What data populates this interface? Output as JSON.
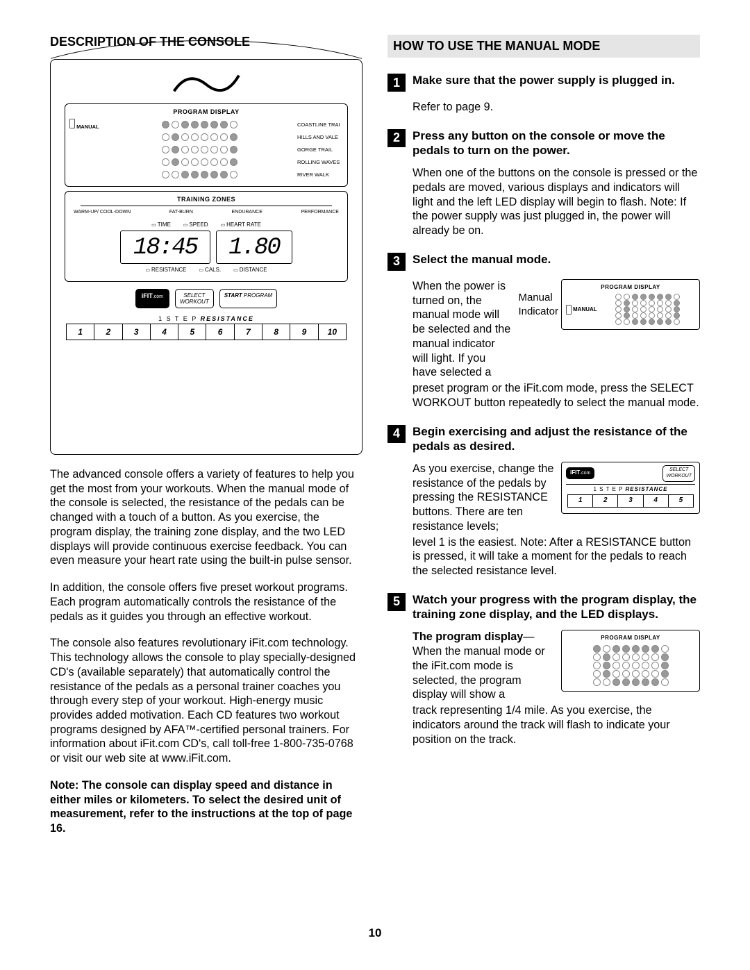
{
  "left": {
    "title": "DESCRIPTION OF THE CONSOLE",
    "console": {
      "program_display_label": "PROGRAM DISPLAY",
      "manual_label": "MANUAL",
      "trail_labels": [
        "COASTLINE TRAI",
        "HILLS AND VALE",
        "GORGE TRAIL",
        "ROLLING WAVES",
        "RIVER WALK"
      ],
      "dot_rows": [
        [
          1,
          0,
          1,
          1,
          1,
          1,
          1,
          0
        ],
        [
          0,
          1,
          0,
          0,
          0,
          0,
          0,
          1
        ],
        [
          0,
          1,
          0,
          0,
          0,
          0,
          0,
          1
        ],
        [
          0,
          1,
          0,
          0,
          0,
          0,
          0,
          1
        ],
        [
          0,
          0,
          1,
          1,
          1,
          1,
          1,
          0
        ]
      ],
      "training_zones_label": "TRAINING ZONES",
      "tz_labels": [
        "WARM-UP/ COOL-DOWN",
        "FAT-BURN",
        "ENDURANCE",
        "PERFORMANCE"
      ],
      "metric_row1": [
        "TIME",
        "SPEED",
        "HEART RATE"
      ],
      "led1": "18:45",
      "led2": "1.80",
      "metric_row2": [
        "RESISTANCE",
        "CALS.",
        "DISTANCE"
      ],
      "ifit_label": "iFIT",
      "ifit_dotcom": ".com",
      "select_workout": "SELECT\nWORKOUT",
      "start_program_b": "START",
      "start_program_r": " PROGRAM",
      "resistance_pre": "1 S T E P  ",
      "resistance_b": "RESISTANCE",
      "res_numbers": [
        "1",
        "2",
        "3",
        "4",
        "5",
        "6",
        "7",
        "8",
        "9",
        "10"
      ]
    },
    "para1": "The advanced console offers a variety of features to help you get the most from your workouts. When the manual mode of the console is selected, the resistance of the pedals can be changed with a touch of a button. As you exercise, the program display, the training zone display, and the two LED displays will provide continuous exercise feedback. You can even measure your heart rate using the built-in pulse sensor.",
    "para2": "In addition, the console offers five preset workout programs. Each program automatically controls the resistance of the pedals as it guides you through an effective workout.",
    "para3": "The console also features revolutionary iFit.com technology. This technology allows the console to play specially-designed CD's (available separately) that automatically control the resistance of the pedals as a personal trainer coaches you through every step of your workout. High-energy music provides added motivation. Each CD features two workout programs designed by AFA™-certified personal trainers. For information about iFit.com CD's, call toll-free 1-800-735-0768 or visit our web site at www.iFit.com.",
    "note": "Note: The console can display speed and distance in either miles or kilometers. To select the desired unit of measurement, refer to the instructions at the top of page 16."
  },
  "right": {
    "title": "HOW TO USE THE MANUAL MODE",
    "steps": [
      {
        "n": "1",
        "head": "Make sure that the power supply is plugged in.",
        "body": "Refer to page 9."
      },
      {
        "n": "2",
        "head": "Press any button on the console or move the pedals to turn on the power.",
        "body": "When one of the buttons on the console is pressed or the pedals are moved, various displays and indicators will light and the left LED display will begin to flash. Note: If the power supply was just plugged in, the power will already be on."
      },
      {
        "n": "3",
        "head": "Select the manual mode.",
        "wrap_text": "When the power is turned on, the manual mode will be selected and the manual indicator will light. If you have selected a",
        "annot1": "Manual",
        "annot2": "Indicator",
        "mini_prog_rows": [
          [
            0,
            0,
            1,
            1,
            1,
            1,
            1,
            0
          ],
          [
            0,
            1,
            0,
            0,
            0,
            0,
            0,
            1
          ],
          [
            0,
            1,
            0,
            0,
            0,
            0,
            0,
            1
          ],
          [
            0,
            1,
            0,
            0,
            0,
            0,
            0,
            1
          ],
          [
            0,
            0,
            1,
            1,
            1,
            1,
            1,
            0
          ]
        ],
        "mini_label": "PROGRAM DISPLAY",
        "mini_manual": "MANUAL",
        "after": "preset program or the iFit.com mode, press the SELECT WORKOUT button repeatedly to select the manual mode."
      },
      {
        "n": "4",
        "head": "Begin exercising and adjust the resistance of the pedals as desired.",
        "wrap_text": "As you exercise, change the resistance of the pedals by pressing the RESISTANCE buttons. There are ten resistance levels;",
        "mini_res_numbers": [
          "1",
          "2",
          "3",
          "4",
          "5"
        ],
        "mini_resistance_pre": "1 S T E P  ",
        "mini_resistance_b": "RESISTANCE",
        "mini_select": "SELECT\nWORKOUT",
        "after": "level 1 is the easiest. Note: After a RESISTANCE button is pressed, it will take a moment for the pedals to reach the selected resistance level."
      },
      {
        "n": "5",
        "head": "Watch your progress with the program display, the training zone display, and the LED displays.",
        "wrap_lead_b": "The program display",
        "wrap_text": "—When the manual mode or the iFit.com mode is selected, the program display will show a",
        "mini_label": "PROGRAM DISPLAY",
        "mini_prog_rows": [
          [
            1,
            0,
            1,
            1,
            1,
            1,
            1,
            0
          ],
          [
            0,
            1,
            0,
            0,
            0,
            0,
            0,
            1
          ],
          [
            0,
            1,
            0,
            0,
            0,
            0,
            0,
            1
          ],
          [
            0,
            1,
            0,
            0,
            0,
            0,
            0,
            1
          ],
          [
            0,
            0,
            1,
            1,
            1,
            1,
            1,
            0
          ]
        ],
        "after": "track representing 1/4 mile. As you exercise, the indicators around the track will flash to indicate your position on the track."
      }
    ]
  },
  "page_number": "10",
  "colors": {
    "text": "#000000",
    "band_bg": "#e5e5e5",
    "dot_fill": "#999999",
    "dot_border": "#888888"
  }
}
